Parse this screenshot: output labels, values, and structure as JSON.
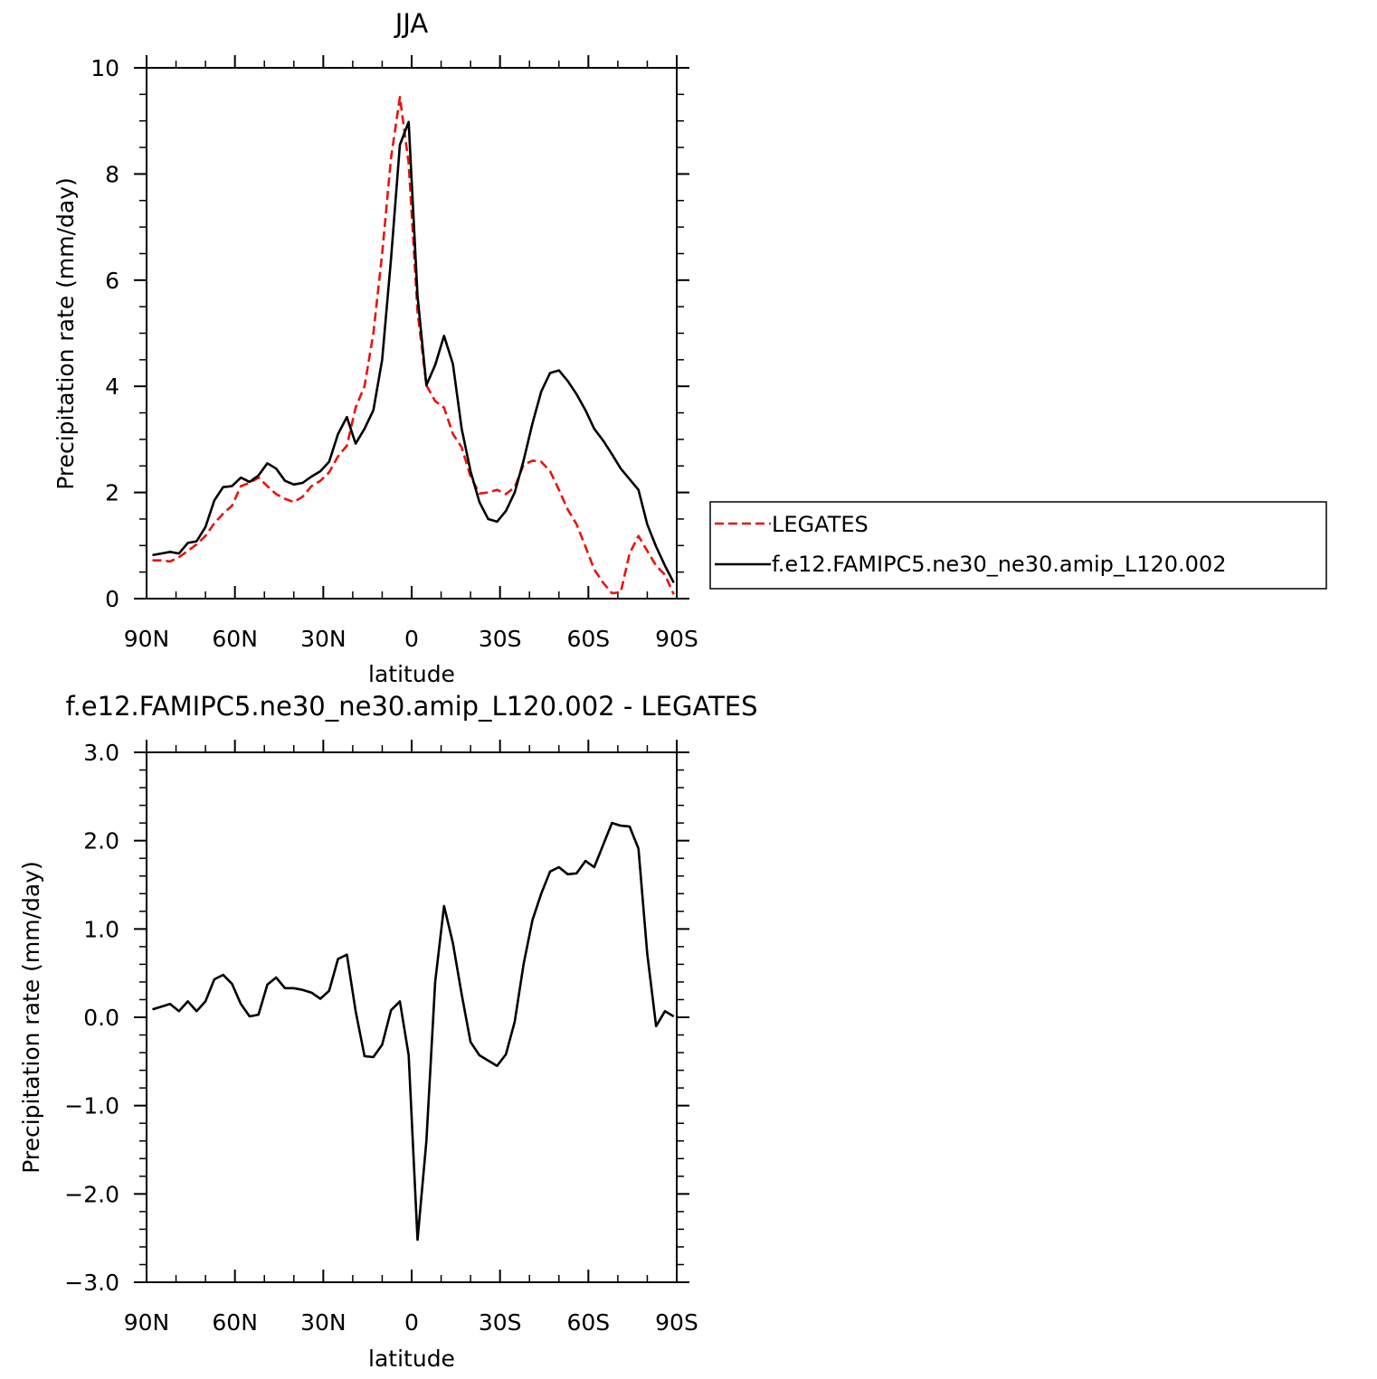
{
  "colors": {
    "legates": "#e8140c",
    "model": "#000000",
    "background": "#ffffff"
  },
  "chart_data": [
    {
      "type": "line",
      "title": "JJA",
      "xlabel": "latitude",
      "ylabel": "Precipitation rate (mm/day)",
      "xlim": [
        90,
        -90
      ],
      "ylim": [
        0,
        10
      ],
      "x_tick_values": [
        90,
        60,
        30,
        0,
        -30,
        -60,
        -90
      ],
      "x_tick_labels": [
        "90N",
        "60N",
        "30N",
        "0",
        "30S",
        "60S",
        "90S"
      ],
      "y_tick_values": [
        0,
        2,
        4,
        6,
        8,
        10
      ],
      "y_tick_labels": [
        "0",
        "2",
        "4",
        "6",
        "8",
        "10"
      ],
      "legend_position": "right",
      "series": [
        {
          "name": "LEGATES",
          "style": "dashed",
          "color": "#e8140c",
          "x": [
            88,
            85,
            82,
            79,
            76,
            73,
            70,
            67,
            64,
            61,
            58,
            55,
            52,
            49,
            46,
            43,
            40,
            37,
            34,
            31,
            28,
            25,
            22,
            19,
            16,
            13,
            10,
            7,
            4,
            1,
            -2,
            -5,
            -8,
            -11,
            -14,
            -17,
            -20,
            -23,
            -26,
            -29,
            -32,
            -35,
            -38,
            -41,
            -44,
            -47,
            -50,
            -53,
            -56,
            -59,
            -62,
            -65,
            -68,
            -71,
            -74,
            -77,
            -80,
            -83,
            -86,
            -89
          ],
          "y": [
            0.72,
            0.72,
            0.7,
            0.78,
            0.9,
            1.02,
            1.18,
            1.42,
            1.6,
            1.75,
            2.12,
            2.18,
            2.28,
            2.12,
            1.97,
            1.88,
            1.82,
            1.92,
            2.12,
            2.22,
            2.38,
            2.68,
            2.88,
            3.6,
            4.0,
            5.0,
            6.5,
            8.3,
            9.45,
            8.2,
            5.4,
            4.02,
            3.72,
            3.6,
            3.1,
            2.85,
            2.3,
            1.98,
            2.0,
            2.05,
            1.97,
            2.1,
            2.52,
            2.6,
            2.58,
            2.4,
            2.05,
            1.68,
            1.4,
            0.98,
            0.55,
            0.3,
            0.1,
            0.12,
            0.85,
            1.18,
            0.9,
            0.62,
            0.45,
            0.08
          ]
        },
        {
          "name": "f.e12.FAMIPC5.ne30_ne30.amip_L120.002",
          "style": "solid",
          "color": "#000000",
          "x": [
            88,
            85,
            82,
            79,
            76,
            73,
            70,
            67,
            64,
            61,
            58,
            55,
            52,
            49,
            46,
            43,
            40,
            37,
            34,
            31,
            28,
            25,
            22,
            19,
            16,
            13,
            10,
            7,
            4,
            1,
            -2,
            -5,
            -8,
            -11,
            -14,
            -17,
            -20,
            -23,
            -26,
            -29,
            -32,
            -35,
            -38,
            -41,
            -44,
            -47,
            -50,
            -53,
            -56,
            -59,
            -62,
            -65,
            -68,
            -71,
            -74,
            -77,
            -80,
            -83,
            -86,
            -89
          ],
          "y": [
            0.82,
            0.85,
            0.88,
            0.85,
            1.05,
            1.08,
            1.35,
            1.85,
            2.1,
            2.12,
            2.28,
            2.2,
            2.32,
            2.55,
            2.45,
            2.22,
            2.15,
            2.18,
            2.3,
            2.4,
            2.58,
            3.1,
            3.42,
            2.92,
            3.2,
            3.55,
            4.5,
            6.4,
            8.55,
            8.98,
            5.7,
            4.02,
            4.4,
            4.95,
            4.42,
            3.2,
            2.4,
            1.82,
            1.5,
            1.45,
            1.65,
            2.0,
            2.6,
            3.3,
            3.9,
            4.25,
            4.3,
            4.1,
            3.85,
            3.55,
            3.2,
            2.98,
            2.72,
            2.45,
            2.25,
            2.05,
            1.4,
            0.98,
            0.62,
            0.3
          ]
        }
      ]
    },
    {
      "type": "line",
      "title": "f.e12.FAMIPC5.ne30_ne30.amip_L120.002 - LEGATES",
      "xlabel": "latitude",
      "ylabel": "Precipitation rate (mm/day)",
      "xlim": [
        90,
        -90
      ],
      "ylim": [
        -3.0,
        3.0
      ],
      "x_tick_values": [
        90,
        60,
        30,
        0,
        -30,
        -60,
        -90
      ],
      "x_tick_labels": [
        "90N",
        "60N",
        "30N",
        "0",
        "30S",
        "60S",
        "90S"
      ],
      "y_tick_values": [
        -3.0,
        -2.0,
        -1.0,
        0.0,
        1.0,
        2.0,
        3.0
      ],
      "y_tick_labels": [
        "−3.0",
        "−2.0",
        "−1.0",
        "0.0",
        "1.0",
        "2.0",
        "3.0"
      ],
      "series": [
        {
          "name": "",
          "style": "solid",
          "color": "#000000",
          "x": [
            88,
            85,
            82,
            79,
            76,
            73,
            70,
            67,
            64,
            61,
            58,
            55,
            52,
            49,
            46,
            43,
            40,
            37,
            34,
            31,
            28,
            25,
            22,
            19,
            16,
            13,
            10,
            7,
            4,
            1,
            -2,
            -5,
            -8,
            -11,
            -14,
            -17,
            -20,
            -23,
            -26,
            -29,
            -32,
            -35,
            -38,
            -41,
            -44,
            -47,
            -50,
            -53,
            -56,
            -59,
            -62,
            -65,
            -68,
            -71,
            -74,
            -77,
            -80,
            -83,
            -86,
            -89
          ],
          "y": [
            0.09,
            0.12,
            0.15,
            0.07,
            0.18,
            0.07,
            0.18,
            0.43,
            0.48,
            0.38,
            0.15,
            0.01,
            0.03,
            0.37,
            0.45,
            0.33,
            0.33,
            0.31,
            0.28,
            0.21,
            0.3,
            0.66,
            0.71,
            0.07,
            -0.44,
            -0.45,
            -0.31,
            0.08,
            0.18,
            -0.43,
            -2.52,
            -1.4,
            0.4,
            1.26,
            0.84,
            0.26,
            -0.28,
            -0.43,
            -0.49,
            -0.55,
            -0.42,
            -0.05,
            0.6,
            1.1,
            1.4,
            1.65,
            1.7,
            1.62,
            1.63,
            1.77,
            1.7,
            1.95,
            2.2,
            2.17,
            2.16,
            1.91,
            0.72,
            -0.1,
            0.07,
            0.01
          ]
        }
      ]
    }
  ]
}
